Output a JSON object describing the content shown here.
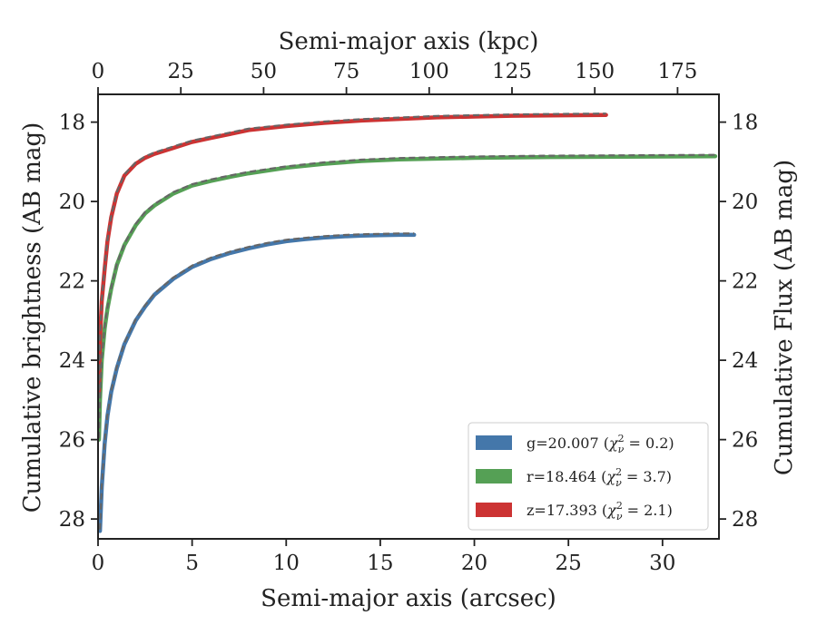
{
  "chart_data": {
    "type": "line",
    "xlabel": "Semi-major axis (arcsec)",
    "ylabel": "Cumulative brightness (AB mag)",
    "x2label": "Semi-major axis (kpc)",
    "y2label": "Cumulative Flux (AB mag)",
    "xlim": [
      0,
      33
    ],
    "ylim": [
      28.5,
      17.3
    ],
    "x2lim": [
      0,
      187.5
    ],
    "y_inverted": true,
    "xticks": [
      "0",
      "5",
      "10",
      "15",
      "20",
      "25",
      "30"
    ],
    "x2ticks": [
      "0",
      "25",
      "50",
      "75",
      "100",
      "125",
      "150",
      "175"
    ],
    "yticks": [
      "18",
      "20",
      "22",
      "24",
      "26",
      "28"
    ],
    "legend_position": "lower right",
    "series": [
      {
        "name": "g=20.007 (χ²ᵥ = 0.2)",
        "legend_main": "g=20.007 (",
        "legend_tail": " = 0.2)",
        "color": "#4477aa",
        "x": [
          0.1,
          0.2,
          0.35,
          0.5,
          0.7,
          1.0,
          1.4,
          2.0,
          2.5,
          3.0,
          4.0,
          5.0,
          6.0,
          7.0,
          8.0,
          9.0,
          10.0,
          11.0,
          12.0,
          13.0,
          14.0,
          15.0,
          16.0,
          16.8
        ],
        "y": [
          28.3,
          27.2,
          26.1,
          25.4,
          24.8,
          24.2,
          23.6,
          23.0,
          22.65,
          22.35,
          21.95,
          21.65,
          21.45,
          21.3,
          21.18,
          21.08,
          21.0,
          20.95,
          20.91,
          20.88,
          20.86,
          20.85,
          20.84,
          20.84
        ]
      },
      {
        "name": "r=18.464 (χ²ᵥ = 3.7)",
        "legend_main": "r=18.464 (",
        "legend_tail": " = 3.7)",
        "color": "#55a055",
        "x": [
          0.05,
          0.1,
          0.2,
          0.35,
          0.5,
          0.7,
          1.0,
          1.4,
          2.0,
          2.5,
          3.0,
          4.0,
          5.0,
          6.0,
          7.0,
          8.0,
          10.0,
          12.0,
          14.0,
          16.0,
          18.0,
          20.0,
          24.0,
          28.0,
          32.8
        ],
        "y": [
          26.0,
          25.0,
          24.0,
          23.2,
          22.7,
          22.2,
          21.6,
          21.1,
          20.6,
          20.3,
          20.1,
          19.8,
          19.6,
          19.48,
          19.38,
          19.29,
          19.15,
          19.05,
          18.98,
          18.94,
          18.92,
          18.9,
          18.88,
          18.87,
          18.86
        ]
      },
      {
        "name": "z=17.393 (χ²ᵥ = 2.1)",
        "legend_main": "z=17.393 (",
        "legend_tail": " = 2.1)",
        "color": "#cc3333",
        "x": [
          0.05,
          0.1,
          0.2,
          0.35,
          0.5,
          0.7,
          1.0,
          1.4,
          2.0,
          2.5,
          3.0,
          4.0,
          5.0,
          6.0,
          7.0,
          8.0,
          10.0,
          12.0,
          14.0,
          16.0,
          18.0,
          20.0,
          22.0,
          24.0,
          27.0
        ],
        "y": [
          24.8,
          23.5,
          22.5,
          21.7,
          21.0,
          20.4,
          19.8,
          19.35,
          19.05,
          18.9,
          18.8,
          18.65,
          18.5,
          18.4,
          18.3,
          18.2,
          18.1,
          18.02,
          17.96,
          17.92,
          17.88,
          17.86,
          17.84,
          17.83,
          17.82
        ]
      }
    ],
    "dashed_model_color": "#666666"
  }
}
